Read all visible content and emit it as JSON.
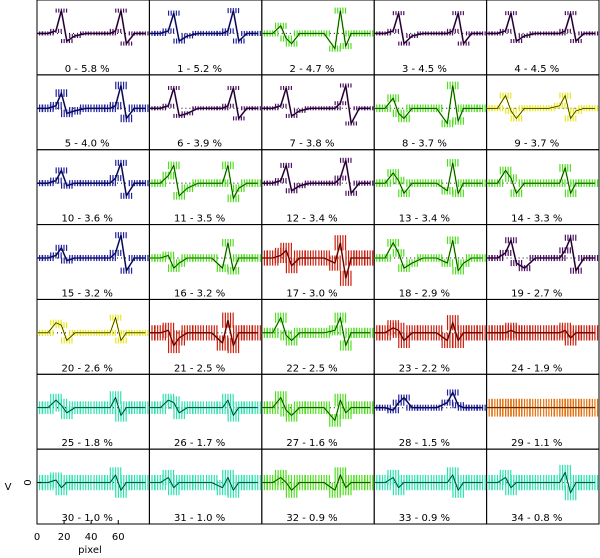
{
  "chart_data": {
    "type": "panels",
    "ylabel": "V",
    "xlabel": "pixel",
    "xlim": [
      0,
      83
    ],
    "xticks": [
      0,
      20,
      40,
      60
    ],
    "ylim": [
      -1.2,
      1.2
    ],
    "yticks": [
      0
    ],
    "x": [
      0,
      8,
      14,
      18,
      22,
      28,
      36,
      46,
      54,
      58,
      62,
      66,
      72,
      80
    ],
    "series": [
      {
        "name": "0 - 5.8 %",
        "color": "#4b1060",
        "error": 0.08,
        "values": [
          0,
          0,
          0.1,
          0.9,
          -0.3,
          -0.1,
          0,
          0,
          0,
          0.1,
          0.9,
          -0.4,
          0,
          0
        ]
      },
      {
        "name": "1 - 5.2 %",
        "color": "#2020a0",
        "error": 0.1,
        "values": [
          0,
          0,
          0.1,
          0.8,
          -0.3,
          -0.1,
          0,
          0,
          0,
          0.1,
          0.9,
          -0.3,
          0,
          0
        ]
      },
      {
        "name": "2 - 4.7 %",
        "color": "#50dd20",
        "error": 0.12,
        "values": [
          0,
          0,
          0.3,
          -0.2,
          -0.4,
          0,
          0,
          0,
          -0.6,
          0.9,
          -0.5,
          0,
          0,
          0
        ]
      },
      {
        "name": "3 - 4.5 %",
        "color": "#4b1060",
        "error": 0.08,
        "values": [
          0,
          0,
          0.1,
          0.8,
          -0.4,
          -0.1,
          0,
          0,
          0,
          0.1,
          0.8,
          -0.4,
          0,
          0
        ]
      },
      {
        "name": "4 - 4.5 %",
        "color": "#4b1060",
        "error": 0.08,
        "values": [
          0,
          0,
          0.1,
          0.8,
          -0.3,
          -0.1,
          0,
          0,
          0,
          0.1,
          0.8,
          -0.3,
          0,
          0
        ]
      },
      {
        "name": "5 - 4.0 %",
        "color": "#2020a0",
        "error": 0.15,
        "values": [
          0,
          0,
          0.1,
          0.6,
          -0.2,
          -0.1,
          0,
          0,
          0,
          0.1,
          0.9,
          -0.4,
          0,
          0
        ]
      },
      {
        "name": "6 - 3.9 %",
        "color": "#4b1060",
        "error": 0.08,
        "values": [
          0,
          0,
          0.1,
          0.8,
          -0.3,
          -0.2,
          0,
          0,
          0,
          0.1,
          0.8,
          -0.4,
          0,
          0
        ]
      },
      {
        "name": "7 - 3.8 %",
        "color": "#4b1060",
        "error": 0.08,
        "values": [
          0,
          0,
          0.1,
          0.8,
          -0.3,
          -0.1,
          0,
          0,
          0,
          0.2,
          0.9,
          -0.6,
          0,
          0
        ]
      },
      {
        "name": "8 - 3.7 %",
        "color": "#50dd20",
        "error": 0.15,
        "values": [
          0,
          0,
          0.4,
          -0.2,
          -0.4,
          0,
          0,
          0,
          -0.6,
          0.9,
          -0.5,
          0,
          0,
          0
        ]
      },
      {
        "name": "9 - 3.7 %",
        "color": "#e8e820",
        "error": 0.12,
        "values": [
          0,
          0,
          0.5,
          -0.1,
          -0.4,
          0,
          0,
          0,
          0.1,
          0.5,
          -0.4,
          -0.1,
          0,
          0
        ]
      },
      {
        "name": "10 - 3.6 %",
        "color": "#2020a0",
        "error": 0.12,
        "values": [
          0,
          0,
          0.1,
          0.5,
          -0.1,
          0,
          0,
          0,
          0,
          0.2,
          0.8,
          -0.5,
          0,
          0
        ]
      },
      {
        "name": "11 - 3.5 %",
        "color": "#50dd20",
        "error": 0.15,
        "values": [
          0,
          0,
          0.3,
          0.7,
          -0.5,
          -0.2,
          0,
          0,
          0,
          0.7,
          -0.6,
          -0.2,
          0,
          0
        ]
      },
      {
        "name": "12 - 3.4 %",
        "color": "#4b1060",
        "error": 0.1,
        "values": [
          0,
          0,
          0.1,
          0.7,
          -0.3,
          -0.1,
          0,
          0,
          0,
          0.2,
          0.9,
          -0.4,
          0,
          0
        ]
      },
      {
        "name": "13 - 3.4 %",
        "color": "#50dd20",
        "error": 0.15,
        "values": [
          0,
          0,
          0.4,
          0.1,
          -0.4,
          0,
          0,
          0,
          -0.3,
          0.8,
          -0.4,
          0,
          0,
          0
        ]
      },
      {
        "name": "14 - 3.3 %",
        "color": "#50dd20",
        "error": 0.15,
        "values": [
          0,
          0,
          0.5,
          0.2,
          -0.4,
          0,
          0,
          0,
          0,
          0.6,
          -0.4,
          0,
          0,
          0
        ]
      },
      {
        "name": "15 - 3.2 %",
        "color": "#2020a0",
        "error": 0.12,
        "values": [
          0,
          0,
          0.1,
          0.4,
          -0.1,
          0,
          0,
          0,
          0,
          0.2,
          0.9,
          -0.5,
          0,
          0
        ]
      },
      {
        "name": "16 - 3.2 %",
        "color": "#50dd20",
        "error": 0.15,
        "values": [
          0,
          0,
          0.1,
          -0.4,
          -0.2,
          0,
          0,
          0,
          -0.4,
          0.6,
          -0.5,
          0,
          0,
          0
        ]
      },
      {
        "name": "17 - 3.0 %",
        "color": "#c82010",
        "error": 0.3,
        "values": [
          0,
          0,
          0.1,
          0.3,
          -0.3,
          0,
          0,
          0,
          -0.2,
          0.6,
          -0.8,
          0,
          0,
          0
        ]
      },
      {
        "name": "18 - 2.9 %",
        "color": "#50dd20",
        "error": 0.15,
        "values": [
          0,
          0,
          0.6,
          0.2,
          -0.4,
          -0.2,
          0,
          0,
          -0.2,
          0.7,
          -0.5,
          -0.2,
          0,
          0
        ]
      },
      {
        "name": "19 - 2.7 %",
        "color": "#4b1060",
        "error": 0.12,
        "values": [
          0,
          0,
          0.2,
          0.7,
          -0.2,
          -0.4,
          0,
          0,
          0,
          0.3,
          0.8,
          -0.5,
          0,
          0
        ]
      },
      {
        "name": "20 - 2.6 %",
        "color": "#e8e820",
        "error": 0.12,
        "values": [
          0,
          0,
          0.4,
          0.3,
          -0.3,
          0,
          0,
          0,
          0,
          0.6,
          -0.3,
          0,
          0,
          0
        ]
      },
      {
        "name": "21 - 2.5 %",
        "color": "#c82010",
        "error": 0.3,
        "values": [
          0,
          0,
          0.1,
          -0.5,
          -0.2,
          0,
          0,
          0,
          -0.4,
          0.5,
          -0.5,
          0,
          0,
          0
        ]
      },
      {
        "name": "22 - 2.5 %",
        "color": "#50dd20",
        "error": 0.2,
        "values": [
          0,
          0,
          0.6,
          -0.1,
          -0.3,
          0,
          0,
          0,
          0.1,
          0.6,
          -0.5,
          0,
          0,
          0
        ]
      },
      {
        "name": "23 - 2.2 %",
        "color": "#c82010",
        "error": 0.3,
        "values": [
          0,
          0,
          0.2,
          0.1,
          -0.3,
          0,
          0,
          0,
          -0.3,
          0.4,
          -0.3,
          0,
          0,
          0
        ]
      },
      {
        "name": "24 - 1.9 %",
        "color": "#c82010",
        "error": 0.3,
        "values": [
          0,
          0,
          0,
          0.1,
          0,
          0,
          0,
          0,
          0,
          0.1,
          -0.2,
          0,
          0,
          0
        ]
      },
      {
        "name": "25 - 1.8 %",
        "color": "#30e0b0",
        "error": 0.25,
        "values": [
          0,
          0,
          0.3,
          0.1,
          -0.2,
          0,
          0,
          0,
          0,
          0.4,
          -0.3,
          0,
          0,
          0
        ]
      },
      {
        "name": "26 - 1.7 %",
        "color": "#30e0b0",
        "error": 0.25,
        "values": [
          0,
          0,
          0.3,
          0.2,
          -0.2,
          0,
          0,
          0,
          0,
          0.3,
          -0.3,
          0,
          0,
          0
        ]
      },
      {
        "name": "27 - 1.6 %",
        "color": "#50dd20",
        "error": 0.25,
        "values": [
          0,
          0,
          0.4,
          -0.1,
          -0.3,
          0,
          0,
          0,
          -0.5,
          0.3,
          -0.2,
          0,
          0,
          0
        ]
      },
      {
        "name": "28 - 1.5 %",
        "color": "#2020a0",
        "error": 0.12,
        "values": [
          0,
          0,
          -0.1,
          0.2,
          0.4,
          0,
          0,
          0,
          0.2,
          0.6,
          0.1,
          0,
          0,
          0
        ]
      },
      {
        "name": "29 - 1.1 %",
        "color": "#e07010",
        "error": 0.35,
        "values": [
          0,
          0,
          0,
          0,
          0,
          0,
          0,
          0,
          0,
          0,
          0,
          0,
          0,
          0
        ]
      },
      {
        "name": "30 - 1.0 %",
        "color": "#30e0b0",
        "error": 0.3,
        "values": [
          0,
          0,
          0.1,
          -0.2,
          0,
          0,
          0,
          0,
          0,
          0.3,
          -0.3,
          0,
          0,
          0
        ]
      },
      {
        "name": "31 - 1.0 %",
        "color": "#30e0b0",
        "error": 0.3,
        "values": [
          0,
          0,
          0.2,
          -0.2,
          0,
          0,
          0,
          0,
          -0.2,
          0.2,
          -0.3,
          0,
          0,
          0
        ]
      },
      {
        "name": "32 - 0.9 %",
        "color": "#50dd20",
        "error": 0.3,
        "values": [
          0,
          0,
          0.2,
          0,
          -0.3,
          0,
          0,
          0,
          -0.3,
          0.3,
          -0.2,
          0,
          0,
          0
        ]
      },
      {
        "name": "33 - 0.9 %",
        "color": "#30e0b0",
        "error": 0.3,
        "values": [
          0,
          0,
          0.2,
          -0.2,
          0,
          0,
          0,
          0,
          0,
          0.3,
          -0.3,
          0,
          0,
          0
        ]
      },
      {
        "name": "34 - 0.8 %",
        "color": "#30e0b0",
        "error": 0.3,
        "values": [
          0,
          0,
          0.2,
          -0.2,
          0,
          0,
          0,
          0,
          0,
          0.4,
          -0.4,
          0,
          0,
          0
        ]
      }
    ]
  }
}
